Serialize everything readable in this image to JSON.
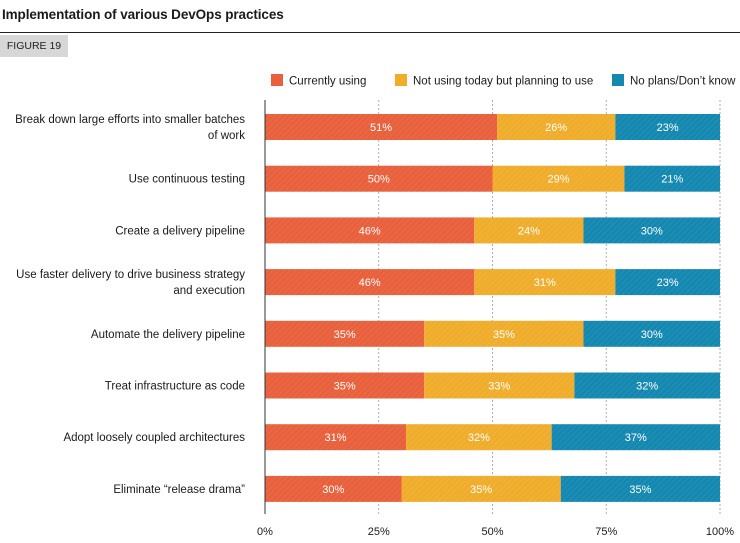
{
  "header": {
    "title": "Implementation of various DevOps practices",
    "figure_label": "FIGURE 19"
  },
  "colors": {
    "currently_using": "#e8603c",
    "planning": "#f0ad2c",
    "no_plans": "#1488b0"
  },
  "chart_data": {
    "type": "bar",
    "orientation": "horizontal",
    "stacked": true,
    "title": "Implementation of various DevOps practices",
    "categories": [
      [
        "Break down large efforts into smaller batches",
        "of work"
      ],
      [
        "Use continuous testing"
      ],
      [
        "Create a delivery pipeline"
      ],
      [
        "Use faster delivery to drive business strategy",
        "and execution"
      ],
      [
        "Automate the delivery pipeline"
      ],
      [
        "Treat infrastructure as code"
      ],
      [
        "Adopt loosely coupled architectures"
      ],
      [
        "Eliminate “release drama”"
      ]
    ],
    "series": [
      {
        "name": "Currently using",
        "color": "#e8603c",
        "values": [
          51,
          50,
          46,
          46,
          35,
          35,
          31,
          30
        ]
      },
      {
        "name": "Not using today but planning to use",
        "color": "#f0ad2c",
        "values": [
          26,
          29,
          24,
          31,
          35,
          33,
          32,
          35
        ]
      },
      {
        "name": "No plans/Don’t know",
        "color": "#1488b0",
        "values": [
          23,
          21,
          30,
          23,
          30,
          32,
          37,
          35
        ]
      }
    ],
    "xlim": [
      0,
      100
    ],
    "xticks": [
      "0%",
      "25%",
      "50%",
      "75%",
      "100%"
    ],
    "value_suffix": "%",
    "legend_position": "top",
    "grid": true
  }
}
